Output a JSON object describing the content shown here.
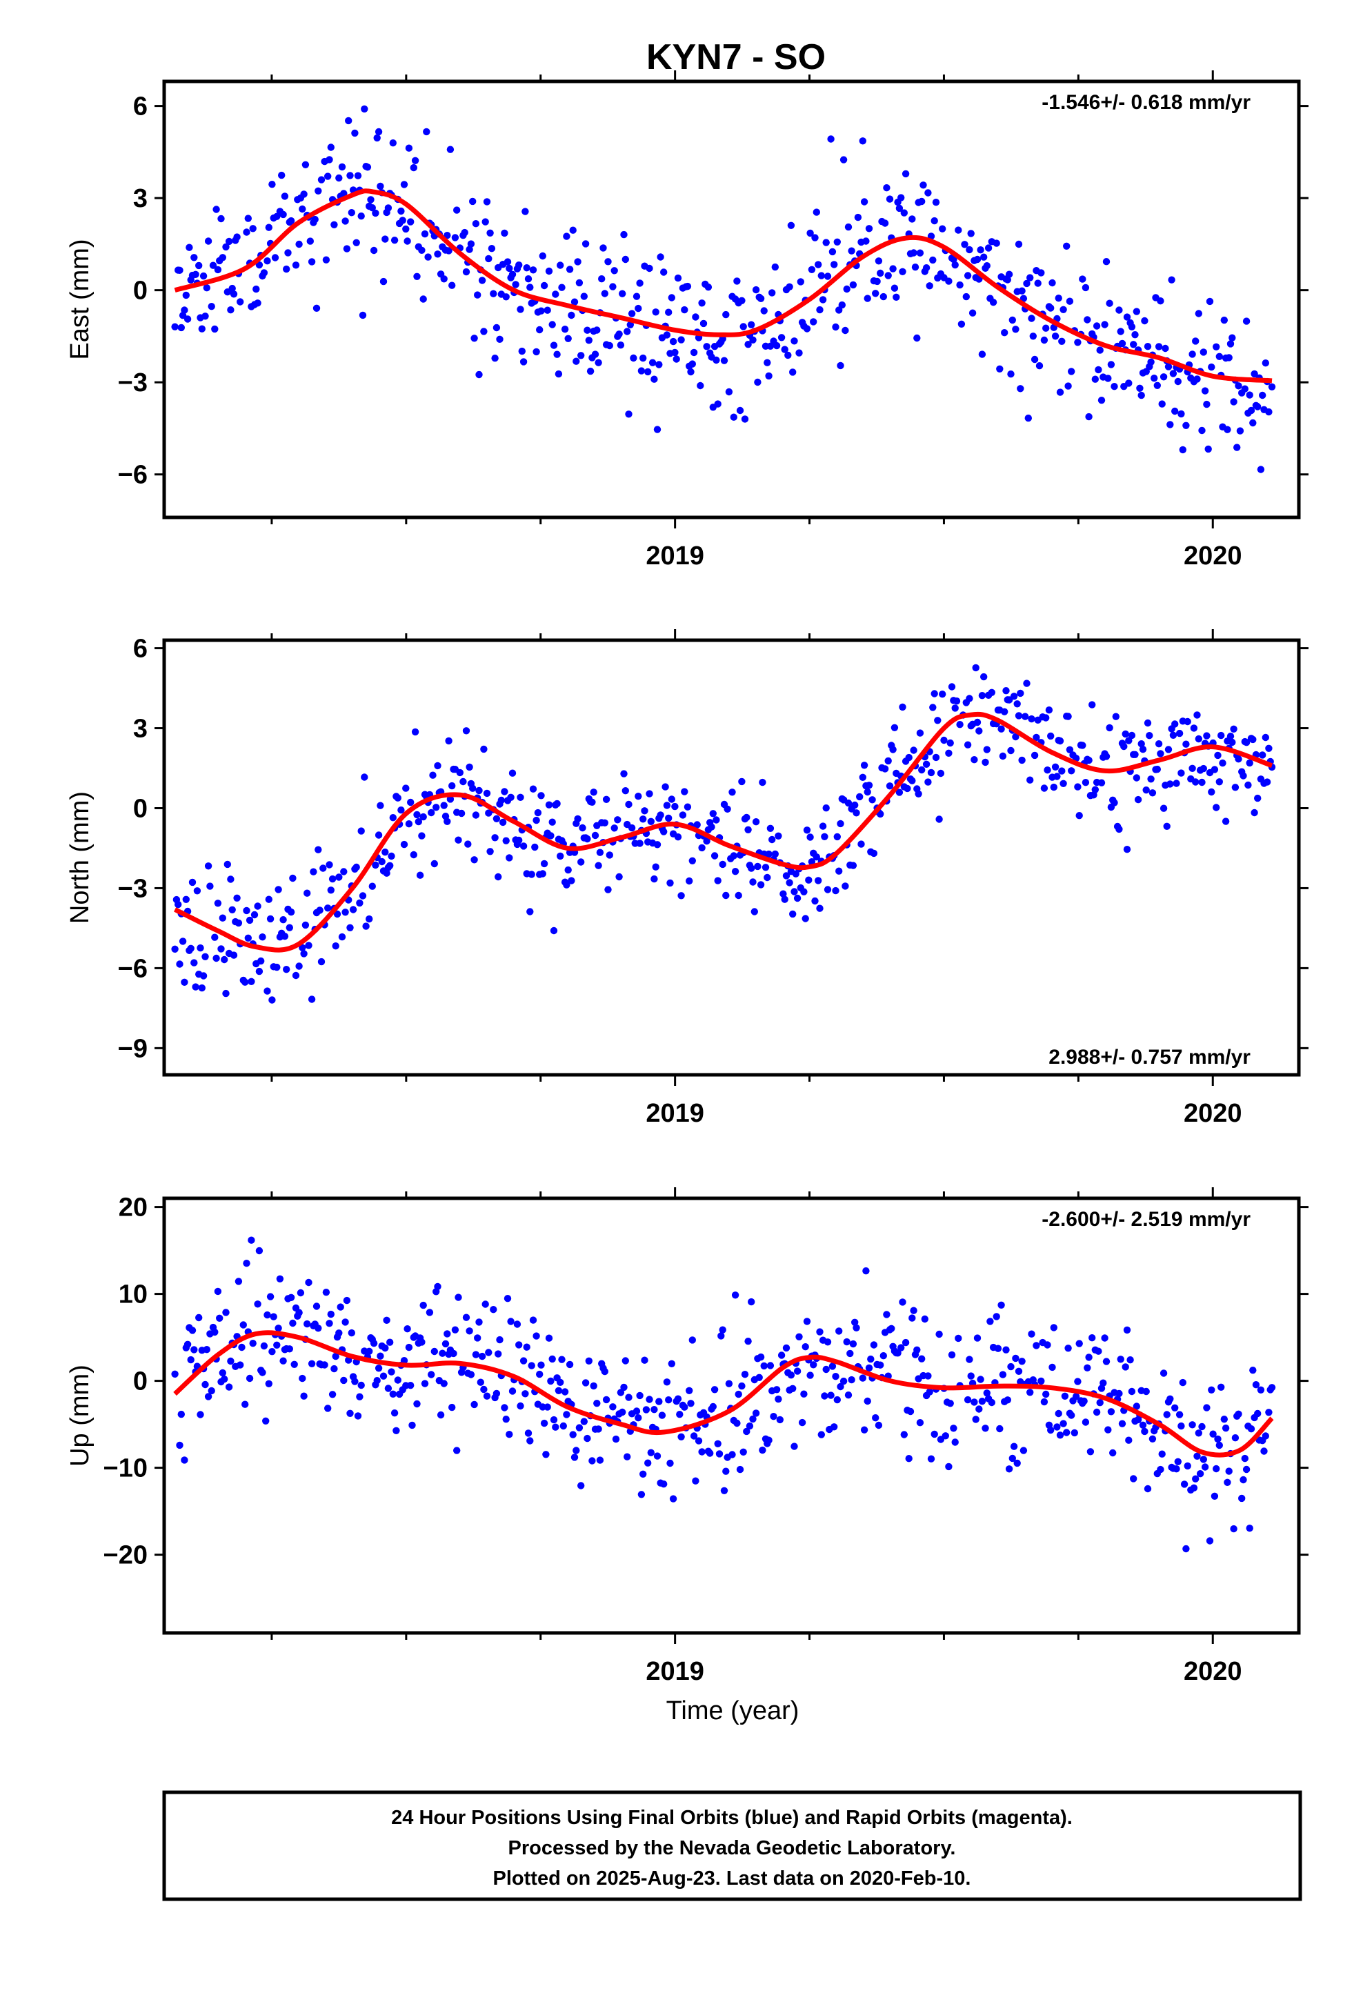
{
  "title": "KYN7 - SO",
  "xlabel": "Time (year)",
  "footer": {
    "line1": "24 Hour Positions Using Final Orbits (blue) and Rapid Orbits (magenta).",
    "line2": "Processed by the Nevada Geodetic Laboratory.",
    "line3": "Plotted on 2025-Aug-23. Last data on 2020-Feb-10."
  },
  "colors": {
    "points": "#0000ff",
    "fit": "#ff0000",
    "frame": "#000000"
  },
  "chart_data": [
    {
      "type": "scatter",
      "ylabel": "East (mm)",
      "rate": "-1.546+/- 0.618 mm/yr",
      "rate_position": "top-right",
      "xlim": [
        2018.05,
        2020.16
      ],
      "ylim": [
        -7.4,
        6.8
      ],
      "yticks": [
        6,
        3,
        0,
        -3,
        -6
      ],
      "xtick_labels": [
        2019,
        2020
      ],
      "fit_x": [
        2018.07,
        2018.2,
        2018.3,
        2018.4,
        2018.44,
        2018.5,
        2018.6,
        2018.7,
        2018.8,
        2018.9,
        2019.0,
        2019.08,
        2019.15,
        2019.25,
        2019.35,
        2019.43,
        2019.5,
        2019.6,
        2019.7,
        2019.8,
        2019.9,
        2020.0,
        2020.11
      ],
      "fit_y": [
        0.0,
        0.7,
        2.2,
        3.1,
        3.2,
        2.8,
        1.2,
        0.0,
        -0.5,
        -0.9,
        -1.3,
        -1.45,
        -1.3,
        -0.3,
        1.1,
        1.7,
        1.4,
        0.1,
        -1.0,
        -1.8,
        -2.2,
        -2.8,
        -2.95
      ],
      "points": {
        "generated": true,
        "seed": 11,
        "count": 690,
        "noise_sd": 1.25
      }
    },
    {
      "type": "scatter",
      "ylabel": "North (mm)",
      "rate": "2.988+/- 0.757 mm/yr",
      "rate_position": "bottom-right",
      "xlim": [
        2018.05,
        2020.16
      ],
      "ylim": [
        -10.0,
        6.3
      ],
      "yticks": [
        6,
        3,
        0,
        -3,
        -6,
        -9
      ],
      "xtick_labels": [
        2019,
        2020
      ],
      "fit_x": [
        2018.07,
        2018.15,
        2018.22,
        2018.3,
        2018.4,
        2018.5,
        2018.6,
        2018.7,
        2018.8,
        2018.9,
        2019.0,
        2019.1,
        2019.2,
        2019.25,
        2019.3,
        2019.4,
        2019.5,
        2019.55,
        2019.6,
        2019.7,
        2019.8,
        2019.9,
        2020.0,
        2020.11
      ],
      "fit_y": [
        -3.8,
        -4.6,
        -5.2,
        -5.1,
        -3.0,
        -0.2,
        0.5,
        -0.5,
        -1.5,
        -1.1,
        -0.6,
        -1.4,
        -2.1,
        -2.2,
        -1.7,
        0.5,
        3.0,
        3.5,
        3.3,
        2.1,
        1.4,
        1.8,
        2.3,
        1.6
      ],
      "points": {
        "generated": true,
        "seed": 23,
        "count": 690,
        "noise_sd": 1.15
      }
    },
    {
      "type": "scatter",
      "ylabel": "Up (mm)",
      "rate": "-2.600+/- 2.519 mm/yr",
      "rate_position": "top-right",
      "xlim": [
        2018.05,
        2020.16
      ],
      "ylim": [
        -29,
        21
      ],
      "yticks": [
        20,
        10,
        0,
        -10,
        -20
      ],
      "xtick_labels": [
        2019,
        2020
      ],
      "fit_x": [
        2018.07,
        2018.15,
        2018.22,
        2018.3,
        2018.4,
        2018.5,
        2018.6,
        2018.7,
        2018.8,
        2018.9,
        2018.98,
        2019.1,
        2019.2,
        2019.25,
        2019.3,
        2019.4,
        2019.5,
        2019.6,
        2019.7,
        2019.8,
        2019.9,
        2019.98,
        2020.05,
        2020.11
      ],
      "fit_y": [
        -1.5,
        3.0,
        5.4,
        5.0,
        2.8,
        1.8,
        2.0,
        0.5,
        -3.0,
        -5.0,
        -5.9,
        -3.5,
        1.5,
        2.7,
        2.2,
        0.0,
        -0.8,
        -0.6,
        -0.8,
        -2.0,
        -5.0,
        -8.2,
        -8.0,
        -4.3
      ],
      "points": {
        "generated": true,
        "seed": 37,
        "count": 690,
        "noise_sd": 4.2
      }
    }
  ]
}
